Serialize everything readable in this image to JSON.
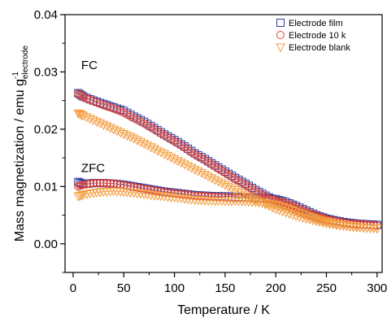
{
  "chart_data": {
    "type": "scatter",
    "title": "",
    "xlabel": "Temperature / K",
    "ylabel": {
      "main": "Mass magnetization / emu g",
      "superscript": "-1",
      "subscript": "electrode"
    },
    "xlim": [
      -8,
      305
    ],
    "ylim": [
      -0.005,
      0.04
    ],
    "xticks": [
      0,
      50,
      100,
      150,
      200,
      250,
      300
    ],
    "yticks": [
      0.0,
      0.01,
      0.02,
      0.03,
      0.04
    ],
    "ytick_labels": [
      "0.00",
      "0.01",
      "0.02",
      "0.03",
      "0.04"
    ],
    "grid": false,
    "legend_position": "top-right",
    "annotations": [
      {
        "text": "FC",
        "x": 8,
        "y": 0.0305
      },
      {
        "text": "ZFC",
        "x": 8,
        "y": 0.0125
      }
    ],
    "series": [
      {
        "name": "Electrode film",
        "marker": "square",
        "color": "#2f3b9a",
        "curves": {
          "FC": {
            "x": [
              5,
              10,
              20,
              30,
              40,
              50,
              60,
              70,
              80,
              90,
              100,
              110,
              120,
              130,
              140,
              150,
              160,
              170,
              180,
              190,
              200,
              210,
              220,
              230,
              240,
              250,
              260,
              270,
              280,
              290,
              300
            ],
            "y": [
              0.0263,
              0.0257,
              0.025,
              0.0244,
              0.0238,
              0.0232,
              0.0222,
              0.0213,
              0.0202,
              0.0191,
              0.0181,
              0.017,
              0.0158,
              0.0148,
              0.0137,
              0.0126,
              0.0115,
              0.0105,
              0.0094,
              0.0084,
              0.0075,
              0.0068,
              0.006,
              0.0053,
              0.0047,
              0.0043,
              0.004,
              0.0037,
              0.0035,
              0.0034,
              0.0033
            ]
          },
          "ZFC": {
            "x": [
              5,
              10,
              20,
              30,
              40,
              50,
              60,
              70,
              80,
              90,
              100,
              110,
              120,
              130,
              140,
              150,
              160,
              170,
              180,
              190,
              200,
              210,
              220,
              230,
              240,
              250,
              260,
              270,
              280,
              290,
              300
            ],
            "y": [
              0.0108,
              0.0104,
              0.0106,
              0.0106,
              0.0105,
              0.0103,
              0.01,
              0.0097,
              0.0094,
              0.0091,
              0.0089,
              0.0087,
              0.0085,
              0.0084,
              0.0083,
              0.0083,
              0.0082,
              0.0081,
              0.0081,
              0.008,
              0.0078,
              0.0073,
              0.0066,
              0.0058,
              0.005,
              0.0044,
              0.004,
              0.0037,
              0.0035,
              0.0034,
              0.0033
            ]
          }
        }
      },
      {
        "name": "Electrode 10 k",
        "marker": "circle",
        "color": "#e8402f",
        "curves": {
          "FC": {
            "x": [
              5,
              10,
              20,
              30,
              40,
              50,
              60,
              70,
              80,
              90,
              100,
              110,
              120,
              130,
              140,
              150,
              160,
              170,
              180,
              190,
              200,
              210,
              220,
              230,
              240,
              250,
              260,
              270,
              280,
              290,
              300
            ],
            "y": [
              0.0262,
              0.0256,
              0.0249,
              0.0242,
              0.0236,
              0.0229,
              0.0219,
              0.021,
              0.02,
              0.0189,
              0.0179,
              0.0168,
              0.0156,
              0.0146,
              0.0135,
              0.0124,
              0.0113,
              0.0103,
              0.0092,
              0.0082,
              0.0073,
              0.0066,
              0.0059,
              0.0052,
              0.0046,
              0.0042,
              0.0039,
              0.0036,
              0.0034,
              0.0033,
              0.0032
            ]
          },
          "ZFC": {
            "x": [
              5,
              10,
              20,
              30,
              40,
              50,
              60,
              70,
              80,
              90,
              100,
              110,
              120,
              130,
              140,
              150,
              160,
              170,
              180,
              190,
              200,
              210,
              220,
              230,
              240,
              250,
              260,
              270,
              280,
              290,
              300
            ],
            "y": [
              0.01,
              0.0103,
              0.0106,
              0.0106,
              0.0105,
              0.0102,
              0.0099,
              0.0096,
              0.0093,
              0.009,
              0.0088,
              0.0086,
              0.0084,
              0.0083,
              0.0082,
              0.0081,
              0.008,
              0.008,
              0.0079,
              0.0078,
              0.0076,
              0.0071,
              0.0064,
              0.0056,
              0.0049,
              0.0043,
              0.0039,
              0.0036,
              0.0034,
              0.0033,
              0.0032
            ]
          }
        }
      },
      {
        "name": "Electrode blank",
        "marker": "triangle-down",
        "color": "#f39c3c",
        "curves": {
          "FC": {
            "x": [
              5,
              10,
              20,
              30,
              40,
              50,
              60,
              70,
              80,
              90,
              100,
              110,
              120,
              130,
              140,
              150,
              160,
              170,
              180,
              190,
              200,
              210,
              220,
              230,
              240,
              250,
              260,
              270,
              280,
              290,
              300
            ],
            "y": [
              0.0228,
              0.0224,
              0.0216,
              0.0208,
              0.02,
              0.0192,
              0.0184,
              0.0175,
              0.0166,
              0.0157,
              0.0148,
              0.0139,
              0.013,
              0.0121,
              0.0112,
              0.0103,
              0.0094,
              0.0085,
              0.0077,
              0.0069,
              0.0061,
              0.0055,
              0.0049,
              0.0044,
              0.004,
              0.0036,
              0.0033,
              0.0031,
              0.0029,
              0.0028,
              0.0027
            ]
          },
          "ZFC": {
            "x": [
              5,
              10,
              20,
              30,
              40,
              50,
              60,
              70,
              80,
              90,
              100,
              110,
              120,
              130,
              140,
              150,
              160,
              170,
              180,
              190,
              200,
              210,
              220,
              230,
              240,
              250,
              260,
              270,
              280,
              290,
              300
            ],
            "y": [
              0.0083,
              0.0086,
              0.0089,
              0.0091,
              0.0092,
              0.0091,
              0.0089,
              0.0087,
              0.0085,
              0.0083,
              0.0081,
              0.0079,
              0.0077,
              0.0076,
              0.0075,
              0.0075,
              0.0075,
              0.0074,
              0.0073,
              0.0072,
              0.0068,
              0.0063,
              0.0057,
              0.005,
              0.0044,
              0.0039,
              0.0035,
              0.0032,
              0.003,
              0.0028,
              0.0027
            ]
          }
        }
      }
    ]
  }
}
